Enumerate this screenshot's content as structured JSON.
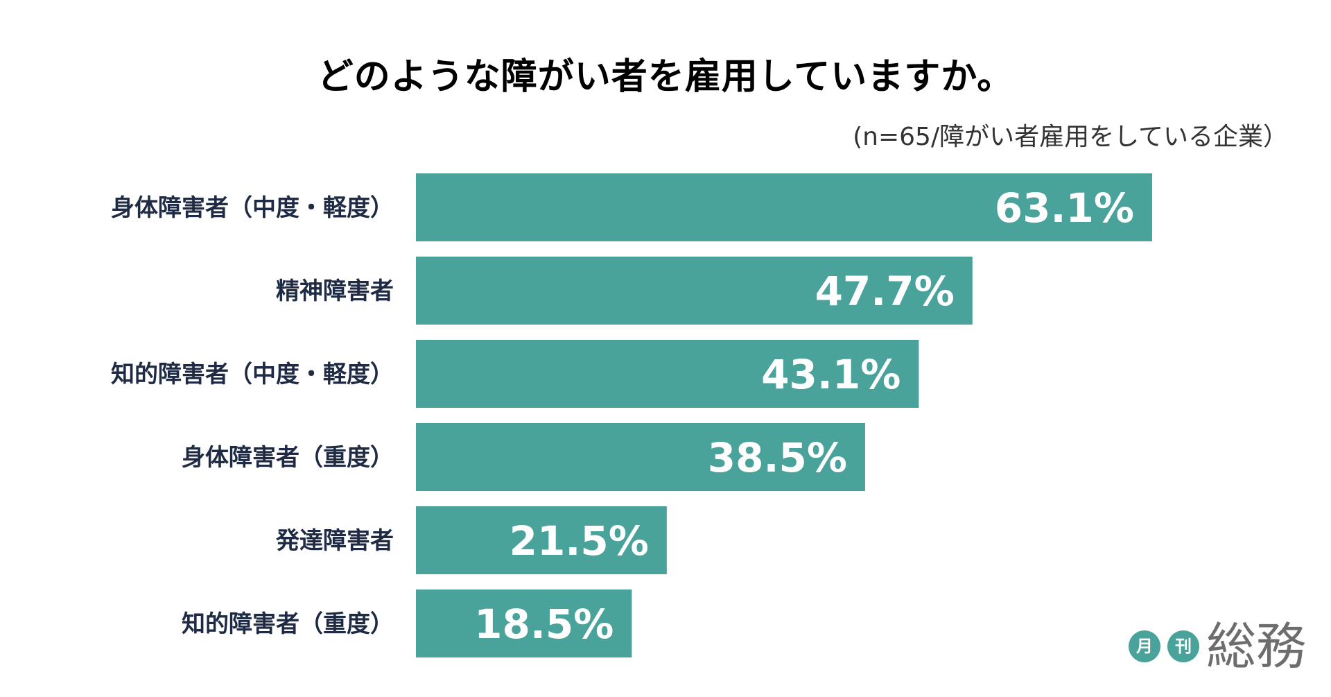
{
  "chart_data": {
    "type": "bar",
    "orientation": "horizontal",
    "title": "どのような障がい者を雇用していますか。",
    "subtitle": "(n=65/障がい者雇用をしている企業）",
    "categories": [
      "身体障害者（中度・軽度）",
      "精神障害者",
      "知的障害者（中度・軽度）",
      "身体障害者（重度）",
      "発達障害者",
      "知的障害者（重度）"
    ],
    "values": [
      63.1,
      47.7,
      43.1,
      38.5,
      21.5,
      18.5
    ],
    "value_labels": [
      "63.1%",
      "47.7%",
      "43.1%",
      "38.5%",
      "21.5%",
      "18.5%"
    ],
    "unit": "%",
    "xlim": [
      0,
      100
    ],
    "grid": false,
    "legend": "none",
    "bar_color": "#4aa39a"
  },
  "logo": {
    "small_1": "月",
    "small_2": "刊",
    "main": "総務"
  }
}
